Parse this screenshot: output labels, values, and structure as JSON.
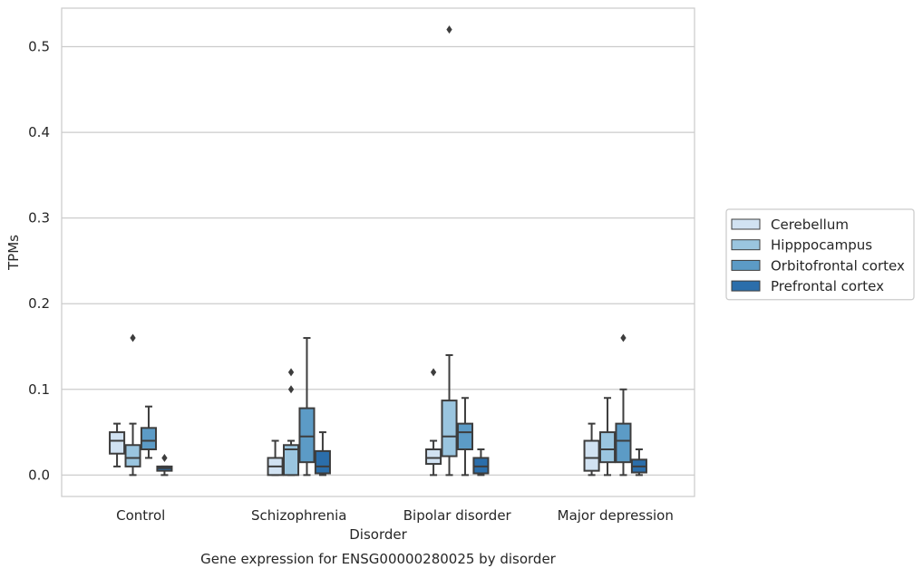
{
  "chart_data": {
    "type": "box",
    "xlabel": "Disorder",
    "ylabel": "TPMs",
    "caption": "Gene expression for ENSG00000280025 by disorder",
    "ylim": [
      -0.025,
      0.545
    ],
    "yticks": [
      0.0,
      0.1,
      0.2,
      0.3,
      0.4,
      0.5
    ],
    "ytick_labels": [
      "0.0",
      "0.1",
      "0.2",
      "0.3",
      "0.4",
      "0.5"
    ],
    "grid": "horizontal",
    "legend_position": "right",
    "categories": [
      "Control",
      "Schizophrenia",
      "Bipolar disorder",
      "Major depression"
    ],
    "series": [
      {
        "name": "Cerebellum",
        "color": "#d1e2f2",
        "boxes": [
          {
            "whislo": 0.01,
            "q1": 0.025,
            "med": 0.04,
            "q3": 0.05,
            "whishi": 0.06,
            "fliers": []
          },
          {
            "whislo": 0.0,
            "q1": 0.0,
            "med": 0.01,
            "q3": 0.02,
            "whishi": 0.04,
            "fliers": []
          },
          {
            "whislo": 0.0,
            "q1": 0.013,
            "med": 0.02,
            "q3": 0.03,
            "whishi": 0.04,
            "fliers": [
              0.12
            ]
          },
          {
            "whislo": 0.0,
            "q1": 0.005,
            "med": 0.02,
            "q3": 0.04,
            "whishi": 0.06,
            "fliers": []
          }
        ]
      },
      {
        "name": "Hipppocampus",
        "color": "#9ac5df",
        "boxes": [
          {
            "whislo": 0.0,
            "q1": 0.01,
            "med": 0.02,
            "q3": 0.035,
            "whishi": 0.06,
            "fliers": [
              0.16
            ]
          },
          {
            "whislo": 0.0,
            "q1": 0.0,
            "med": 0.03,
            "q3": 0.035,
            "whishi": 0.04,
            "fliers": [
              0.1,
              0.12
            ]
          },
          {
            "whislo": 0.0,
            "q1": 0.022,
            "med": 0.045,
            "q3": 0.087,
            "whishi": 0.14,
            "fliers": [
              0.52
            ]
          },
          {
            "whislo": 0.0,
            "q1": 0.015,
            "med": 0.03,
            "q3": 0.05,
            "whishi": 0.09,
            "fliers": []
          }
        ]
      },
      {
        "name": "Orbitofrontal cortex",
        "color": "#5c9bc6",
        "boxes": [
          {
            "whislo": 0.02,
            "q1": 0.03,
            "med": 0.04,
            "q3": 0.055,
            "whishi": 0.08,
            "fliers": []
          },
          {
            "whislo": 0.0,
            "q1": 0.015,
            "med": 0.045,
            "q3": 0.078,
            "whishi": 0.16,
            "fliers": []
          },
          {
            "whislo": 0.0,
            "q1": 0.03,
            "med": 0.05,
            "q3": 0.06,
            "whishi": 0.09,
            "fliers": []
          },
          {
            "whislo": 0.0,
            "q1": 0.015,
            "med": 0.04,
            "q3": 0.06,
            "whishi": 0.1,
            "fliers": [
              0.16
            ]
          }
        ]
      },
      {
        "name": "Prefrontal cortex",
        "color": "#2b6eab",
        "boxes": [
          {
            "whislo": 0.0,
            "q1": 0.005,
            "med": 0.008,
            "q3": 0.01,
            "whishi": 0.01,
            "fliers": [
              0.02
            ]
          },
          {
            "whislo": 0.0,
            "q1": 0.002,
            "med": 0.01,
            "q3": 0.028,
            "whishi": 0.05,
            "fliers": []
          },
          {
            "whislo": 0.0,
            "q1": 0.002,
            "med": 0.01,
            "q3": 0.02,
            "whishi": 0.03,
            "fliers": []
          },
          {
            "whislo": 0.0,
            "q1": 0.003,
            "med": 0.01,
            "q3": 0.018,
            "whishi": 0.03,
            "fliers": []
          }
        ]
      }
    ]
  }
}
